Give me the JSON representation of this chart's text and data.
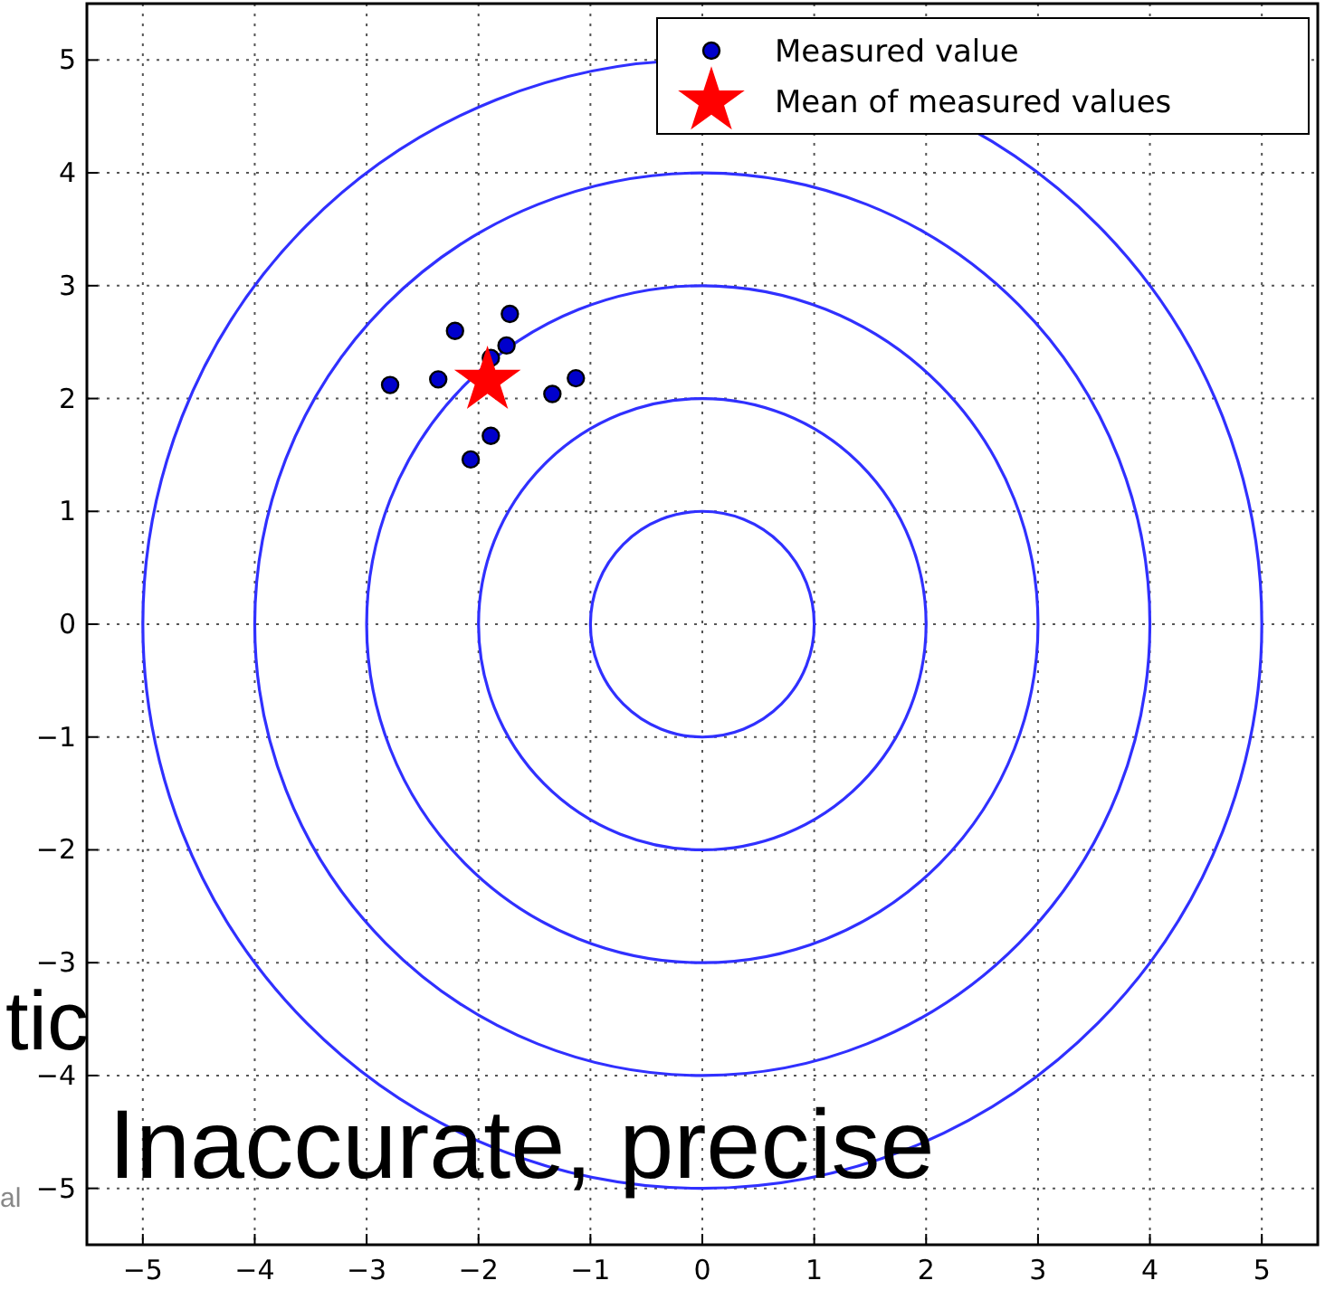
{
  "chart_data": {
    "type": "scatter",
    "xlim": [
      -5.5,
      5.5
    ],
    "ylim": [
      -5.5,
      5.5
    ],
    "xticks": [
      {
        "value": -5,
        "label": "−5"
      },
      {
        "value": -4,
        "label": "−4"
      },
      {
        "value": -3,
        "label": "−3"
      },
      {
        "value": -2,
        "label": "−2"
      },
      {
        "value": -1,
        "label": "−1"
      },
      0,
      1,
      2,
      3,
      4,
      5
    ],
    "yticks": [
      {
        "value": -5,
        "label": "−5"
      },
      {
        "value": -4,
        "label": "−4"
      },
      {
        "value": -3,
        "label": "−3"
      },
      {
        "value": -2,
        "label": "−2"
      },
      {
        "value": -1,
        "label": "−1"
      },
      0,
      1,
      2,
      3,
      4,
      5
    ],
    "grid": true,
    "legend": "top right",
    "series": [
      {
        "type": "scatter",
        "name": "Measured value",
        "color": "#0000cc",
        "marker": "circle",
        "x": [
          -2.79,
          -2.36,
          -2.21,
          -1.72,
          -1.75,
          -1.89,
          -1.34,
          -1.13,
          -1.89,
          -2.07
        ],
        "values": [
          2.12,
          2.17,
          2.6,
          2.75,
          2.47,
          2.36,
          2.04,
          2.18,
          1.67,
          1.46
        ]
      },
      {
        "type": "scatter",
        "name": "Mean of measured values",
        "color": "#ff0000",
        "marker": "star",
        "x": [
          -1.92
        ],
        "values": [
          2.16
        ]
      }
    ],
    "annotations": [
      "tic",
      "Inaccurate, precise",
      "al"
    ]
  }
}
